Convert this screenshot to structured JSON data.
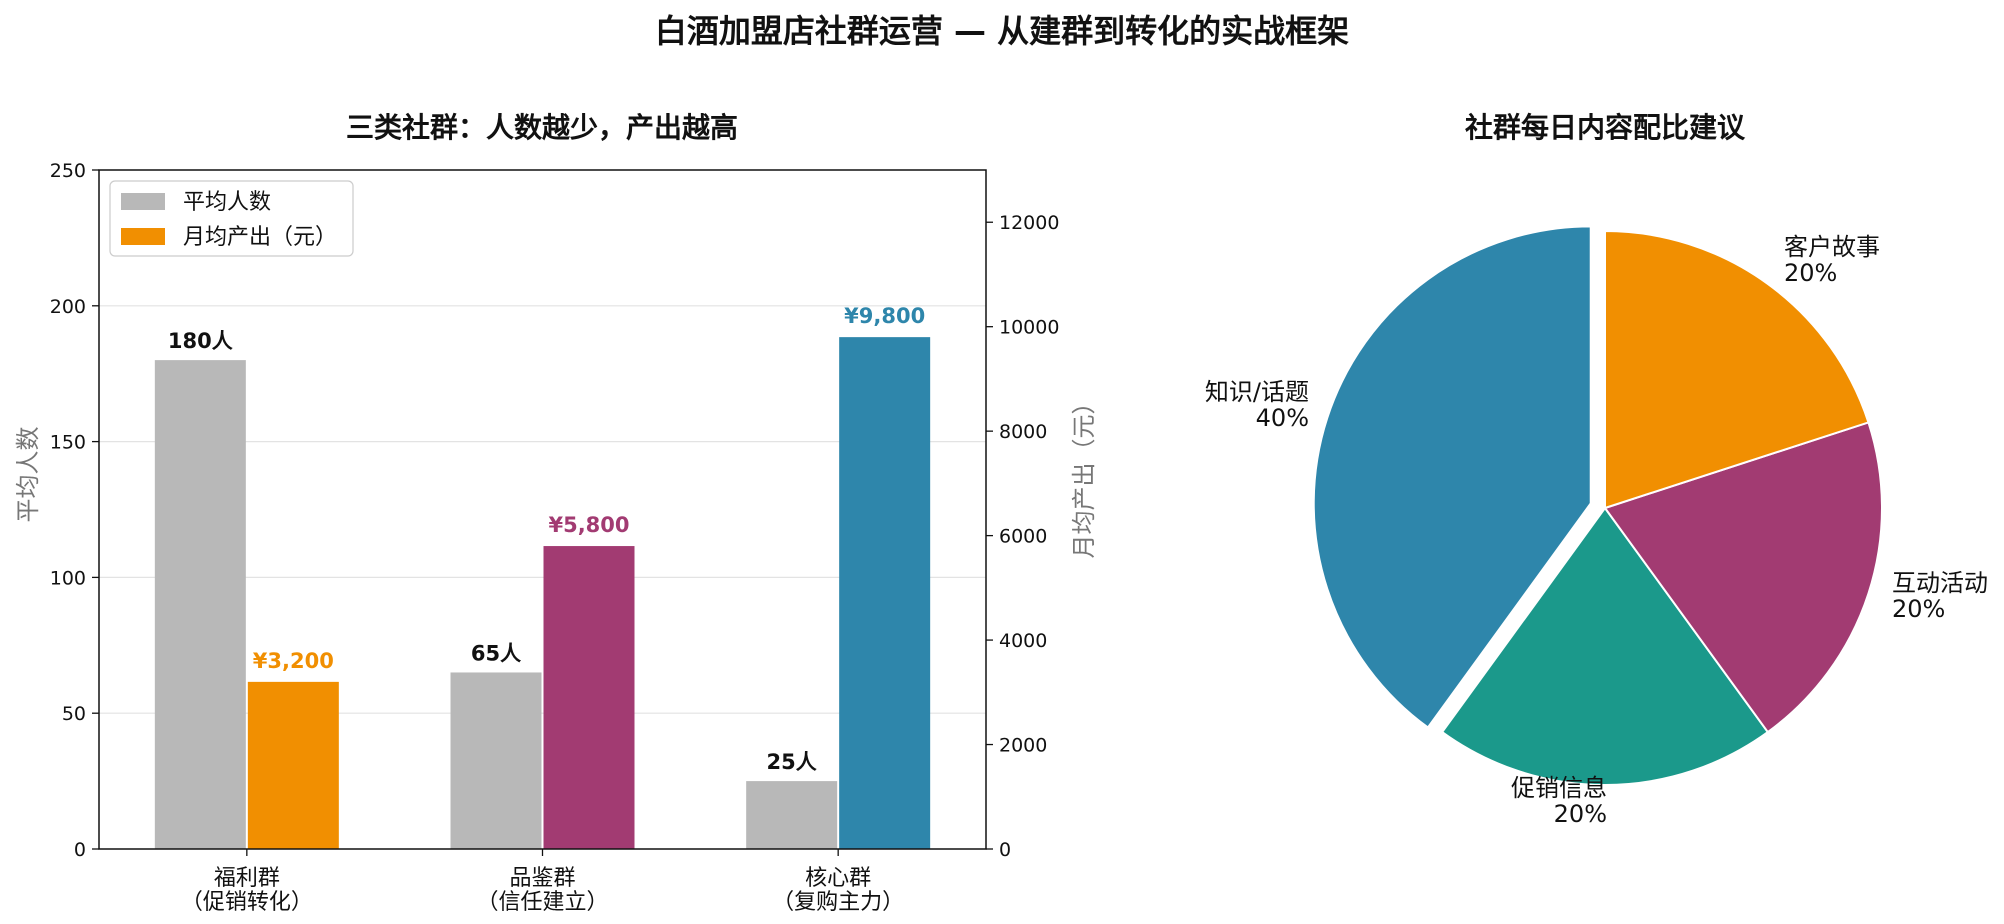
{
  "figure": {
    "title": "白酒加盟店社群运营 — 从建群到转化的实战框架"
  },
  "chart_data": [
    {
      "type": "bar",
      "title": "三类社群：人数越少，产出越高",
      "categories": [
        [
          "福利群",
          "（促销转化）"
        ],
        [
          "品鉴群",
          "（信任建立）"
        ],
        [
          "核心群",
          "（复购主力）"
        ]
      ],
      "ylabel": "平均人数",
      "y2label": "月均产出（元）",
      "ylim": [
        0,
        250
      ],
      "y2lim": [
        0,
        13000
      ],
      "yticks": [
        0,
        50,
        100,
        150,
        200,
        250
      ],
      "y2ticks": [
        0,
        2000,
        4000,
        6000,
        8000,
        10000,
        12000
      ],
      "grid": true,
      "legend_position": "top-left",
      "series": [
        {
          "name": "平均人数",
          "axis": "left",
          "values": [
            180,
            65,
            25
          ],
          "labels": [
            "180人",
            "65人",
            "25人"
          ],
          "color": "#b8b8b8",
          "label_color": "#111111"
        },
        {
          "name": "月均产出（元）",
          "axis": "right",
          "values": [
            3200,
            5800,
            9800
          ],
          "labels": [
            "¥3,200",
            "¥5,800",
            "¥9,800"
          ],
          "colors": [
            "#f18f01",
            "#a23b72",
            "#2e86ab"
          ],
          "legend_color": "#f18f01"
        }
      ]
    },
    {
      "type": "pie",
      "title": "社群每日内容配比建议",
      "slices": [
        {
          "label": "知识/话题",
          "value": 40,
          "pct": "40%",
          "color": "#2e86ab",
          "explode": true
        },
        {
          "label": "客户故事",
          "value": 20,
          "pct": "20%",
          "color": "#1b998b",
          "explode": false
        },
        {
          "label": "互动活动",
          "value": 20,
          "pct": "20%",
          "color": "#a23b72",
          "explode": false
        },
        {
          "label": "促销信息",
          "value": 20,
          "pct": "20%",
          "color": "#f18f01",
          "explode": false
        }
      ]
    }
  ]
}
